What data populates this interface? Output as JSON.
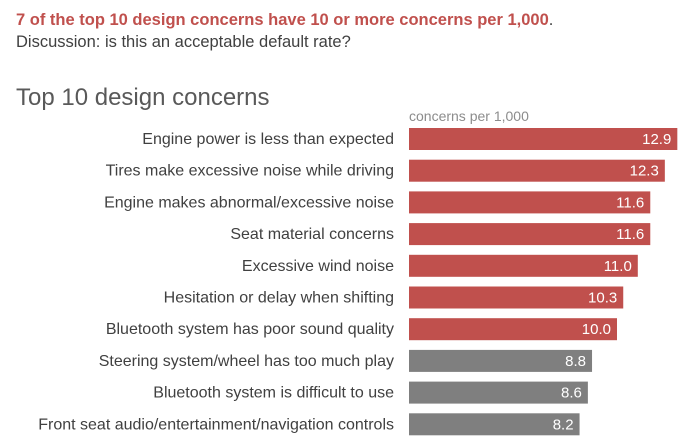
{
  "headline": {
    "highlight": "7 of the top 10 design concerns have 10 or more concerns per 1,000",
    "period": ".",
    "subtitle": "Discussion: is this an acceptable default rate?"
  },
  "colors": {
    "above": "#c0504d",
    "below": "#7f7f7f",
    "label": "#404040",
    "value_text": "#ffffff"
  },
  "chart_data": {
    "type": "bar",
    "orientation": "horizontal",
    "title": "Top 10 design concerns",
    "axis_label": "concerns per 1,000",
    "threshold": 10,
    "categories": [
      "Engine power is less than expected",
      "Tires make excessive noise while driving",
      "Engine makes abnormal/excessive noise",
      "Seat material concerns",
      "Excessive wind noise",
      "Hesitation or delay when shifting",
      "Bluetooth system has poor sound quality",
      "Steering system/wheel has too much play",
      "Bluetooth system is difficult to use",
      "Front seat audio/entertainment/navigation controls"
    ],
    "values": [
      12.9,
      12.3,
      11.6,
      11.6,
      11.0,
      10.3,
      10.0,
      8.8,
      8.6,
      8.2
    ],
    "value_labels": [
      "12.9",
      "12.3",
      "11.6",
      "11.6",
      "11.0",
      "10.3",
      "10.0",
      "8.8",
      "8.6",
      "8.2"
    ],
    "grid": false,
    "legend": "none"
  }
}
